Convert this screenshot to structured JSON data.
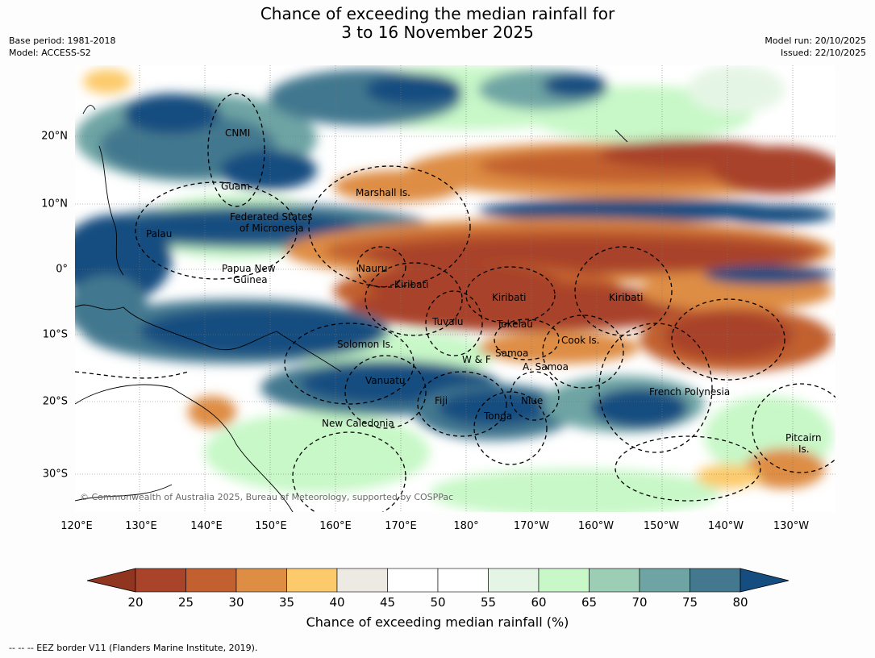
{
  "title": {
    "line1": "Chance of exceeding the median rainfall for",
    "line2": "3 to 16 November 2025"
  },
  "meta": {
    "base_period": "Base period: 1981-2018",
    "model": "Model: ACCESS-S2",
    "model_run": "Model run: 20/10/2025",
    "issued": "Issued: 22/10/2025"
  },
  "copyright": "© Commonwealth of Australia 2025, Bureau of Meteorology, supported by COSPPac",
  "lon_ticks": [
    "120°E",
    "130°E",
    "140°E",
    "150°E",
    "160°E",
    "170°E",
    "180°",
    "170°W",
    "160°W",
    "150°W",
    "140°W",
    "130°W"
  ],
  "lat_ticks": [
    "20°N",
    "10°N",
    "0°",
    "10°S",
    "20°S",
    "30°S"
  ],
  "regions": [
    {
      "id": "cnmi",
      "label": "CNMI"
    },
    {
      "id": "guam",
      "label": "Guam"
    },
    {
      "id": "marshall",
      "label": "Marshall Is."
    },
    {
      "id": "fsm1",
      "label": "Federated States"
    },
    {
      "id": "fsm2",
      "label": "of Micronesia"
    },
    {
      "id": "palau",
      "label": "Palau"
    },
    {
      "id": "png1",
      "label": "Papua New"
    },
    {
      "id": "png2",
      "label": "Guinea"
    },
    {
      "id": "nauru",
      "label": "Nauru"
    },
    {
      "id": "kiribati-w",
      "label": "Kiribati"
    },
    {
      "id": "kiribati-c",
      "label": "Kiribati"
    },
    {
      "id": "kiribati-e",
      "label": "Kiribati"
    },
    {
      "id": "tuvalu",
      "label": "Tuvalu"
    },
    {
      "id": "tokelau",
      "label": "Tokelau"
    },
    {
      "id": "cook",
      "label": "Cook Is."
    },
    {
      "id": "solomon",
      "label": "Solomon Is."
    },
    {
      "id": "samoa",
      "label": "Samoa"
    },
    {
      "id": "wf",
      "label": "W & F"
    },
    {
      "id": "asamoa",
      "label": "A. Samoa"
    },
    {
      "id": "vanuatu",
      "label": "Vanuatu"
    },
    {
      "id": "fiji",
      "label": "Fiji"
    },
    {
      "id": "niue",
      "label": "Niue"
    },
    {
      "id": "tonga",
      "label": "Tonga"
    },
    {
      "id": "frpoly",
      "label": "French Polynesia"
    },
    {
      "id": "newcal",
      "label": "New Caledonia"
    },
    {
      "id": "pitcairn1",
      "label": "Pitcairn"
    },
    {
      "id": "pitcairn2",
      "label": "Is."
    }
  ],
  "legend": {
    "title": "Chance of exceeding median rainfall (%)",
    "ticks": [
      "20",
      "25",
      "30",
      "35",
      "40",
      "45",
      "50",
      "55",
      "60",
      "65",
      "70",
      "75",
      "80"
    ],
    "colors": [
      "#a9432a",
      "#c2612f",
      "#de8d44",
      "#fcca6a",
      "#edeae4",
      "#ffffff",
      "#ffffff",
      "#e5f5e5",
      "#c8f8c8",
      "#9ccdb5",
      "#6ea4a4",
      "#43788f"
    ],
    "low_color": "#8f3520",
    "high_color": "#164d80"
  },
  "eez_note": "--  --  -- EEZ border V11 (Flanders Marine Institute, 2019)."
}
